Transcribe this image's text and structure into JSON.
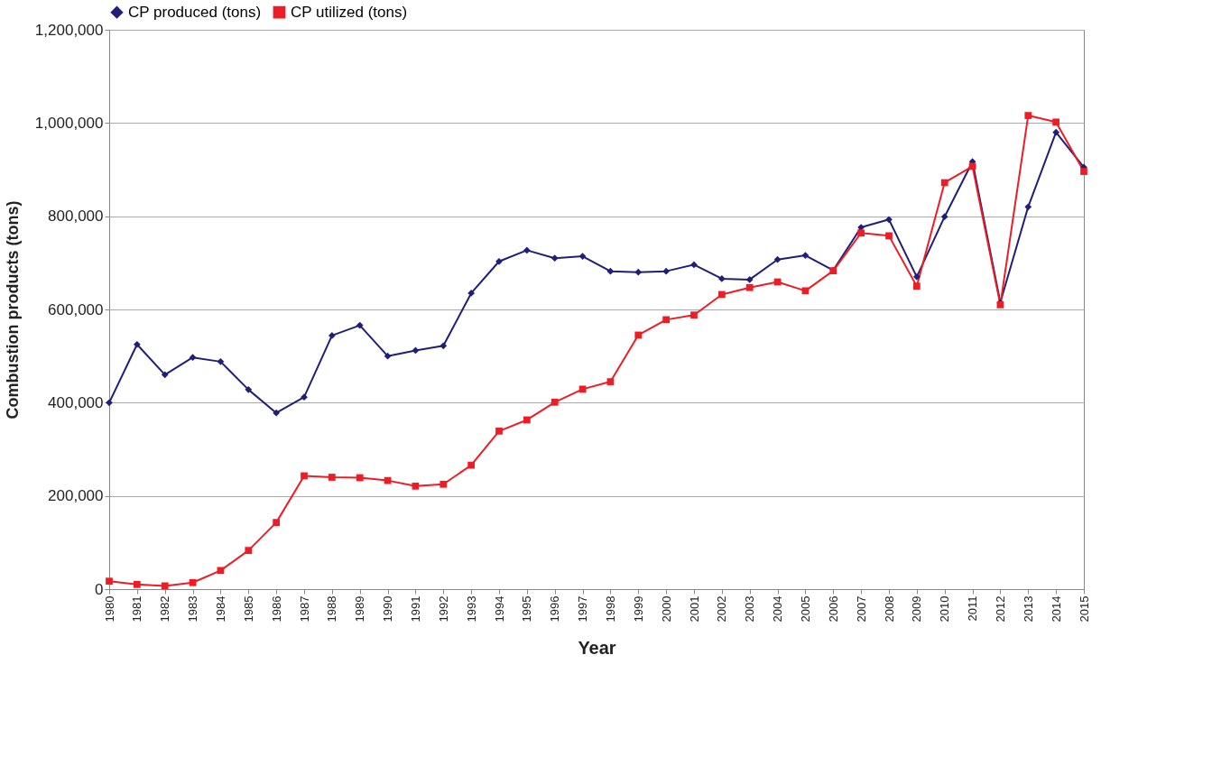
{
  "chart_data": {
    "type": "line",
    "xlabel": "Year",
    "ylabel": "Combustion products (tons)",
    "categories": [
      "1980",
      "1981",
      "1982",
      "1983",
      "1984",
      "1985",
      "1986",
      "1987",
      "1988",
      "1989",
      "1990",
      "1991",
      "1992",
      "1993",
      "1994",
      "1995",
      "1996",
      "1997",
      "1998",
      "1999",
      "2000",
      "2001",
      "2002",
      "2003",
      "2004",
      "2005",
      "2006",
      "2007",
      "2008",
      "2009",
      "2010",
      "2011",
      "2012",
      "2013",
      "2014",
      "2015"
    ],
    "series": [
      {
        "name": "CP produced (tons)",
        "color": "#1f1f7a",
        "marker": "diamond",
        "values": [
          400000,
          525000,
          460000,
          497000,
          488000,
          428000,
          378000,
          412000,
          544000,
          566000,
          500000,
          512000,
          522000,
          635000,
          703000,
          727000,
          710000,
          714000,
          682000,
          680000,
          682000,
          696000,
          666000,
          664000,
          707000,
          716000,
          684000,
          776000,
          793000,
          670000,
          799000,
          917000,
          615000,
          820000,
          980000,
          905000
        ]
      },
      {
        "name": "CP utilized (tons)",
        "color": "#ee1c25",
        "marker": "square",
        "values": [
          17000,
          10000,
          7000,
          14000,
          40000,
          83000,
          143000,
          243000,
          240000,
          239000,
          233000,
          221000,
          225000,
          266000,
          339000,
          363000,
          401000,
          429000,
          445000,
          545000,
          578000,
          588000,
          632000,
          647000,
          659000,
          640000,
          683000,
          764000,
          758000,
          650000,
          872000,
          907000,
          610000,
          1016000,
          1002000,
          896000
        ]
      }
    ],
    "ylim": [
      0,
      1200000
    ],
    "yticks": [
      0,
      {
        "value": 200000,
        "label": "200,000"
      },
      {
        "value": 400000,
        "label": "400,000"
      },
      {
        "value": 600000,
        "label": "600,000"
      },
      {
        "value": 800000,
        "label": "800,000"
      },
      {
        "value": 1000000,
        "label": "1,000,000"
      },
      {
        "value": 1200000,
        "label": "1,200,000"
      }
    ],
    "grid": "y",
    "legend": "top left",
    "line_style": "solid"
  }
}
